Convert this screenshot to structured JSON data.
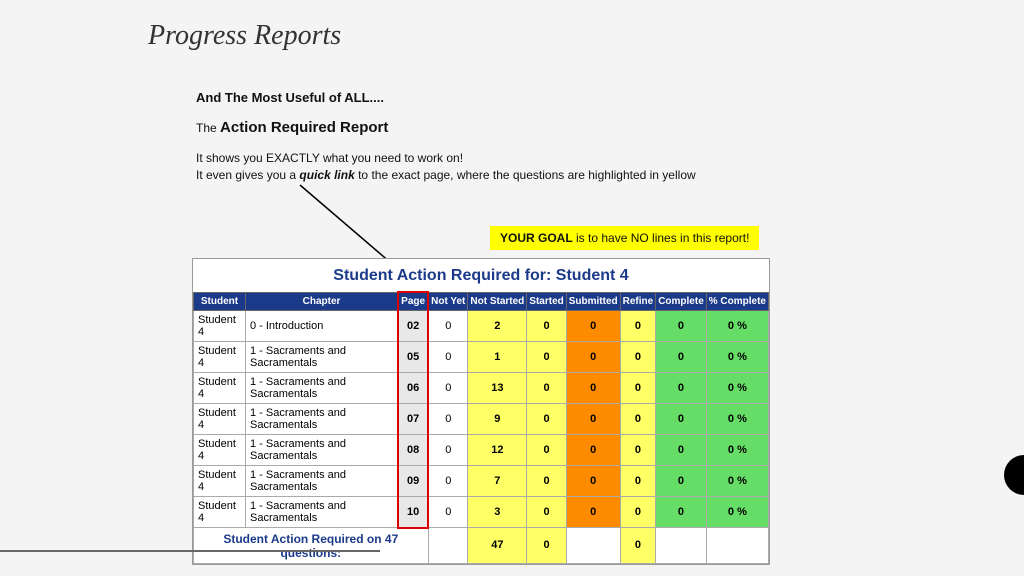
{
  "title": "Progress Reports",
  "heading1": "And The Most Useful of ALL....",
  "heading2_pre": "The ",
  "heading2_big": "Action Required Report",
  "desc1": "It shows you EXACTLY what you need to work on!",
  "desc2a": "It even gives you a ",
  "desc2b": "quick link",
  "desc2c": " to the exact page, where the questions are highlighted in yellow",
  "goal_bold": "YOUR GOAL",
  "goal_rest": " is to have NO lines in this report!",
  "report_title": "Student Action Required for: Student 4",
  "columns": [
    "Student",
    "Chapter",
    "Page",
    "Not Yet",
    "Not Started",
    "Started",
    "Submitted",
    "Refine",
    "Complete",
    "% Complete"
  ],
  "rows": [
    {
      "student": "Student 4",
      "chapter": "0 - Introduction",
      "page": "02",
      "notyet": "0",
      "notstarted": "2",
      "started": "0",
      "submitted": "0",
      "refine": "0",
      "complete": "0",
      "pct": "0 %"
    },
    {
      "student": "Student 4",
      "chapter": "1 - Sacraments and Sacramentals",
      "page": "05",
      "notyet": "0",
      "notstarted": "1",
      "started": "0",
      "submitted": "0",
      "refine": "0",
      "complete": "0",
      "pct": "0 %"
    },
    {
      "student": "Student 4",
      "chapter": "1 - Sacraments and Sacramentals",
      "page": "06",
      "notyet": "0",
      "notstarted": "13",
      "started": "0",
      "submitted": "0",
      "refine": "0",
      "complete": "0",
      "pct": "0 %"
    },
    {
      "student": "Student 4",
      "chapter": "1 - Sacraments and Sacramentals",
      "page": "07",
      "notyet": "0",
      "notstarted": "9",
      "started": "0",
      "submitted": "0",
      "refine": "0",
      "complete": "0",
      "pct": "0 %"
    },
    {
      "student": "Student 4",
      "chapter": "1 - Sacraments and Sacramentals",
      "page": "08",
      "notyet": "0",
      "notstarted": "12",
      "started": "0",
      "submitted": "0",
      "refine": "0",
      "complete": "0",
      "pct": "0 %"
    },
    {
      "student": "Student 4",
      "chapter": "1 - Sacraments and Sacramentals",
      "page": "09",
      "notyet": "0",
      "notstarted": "7",
      "started": "0",
      "submitted": "0",
      "refine": "0",
      "complete": "0",
      "pct": "0 %"
    },
    {
      "student": "Student 4",
      "chapter": "1 - Sacraments and Sacramentals",
      "page": "10",
      "notyet": "0",
      "notstarted": "3",
      "started": "0",
      "submitted": "0",
      "refine": "0",
      "complete": "0",
      "pct": "0 %"
    }
  ],
  "summary_label": "Student Action Required on 47 questions:",
  "summary": {
    "notstarted": "47",
    "started": "0",
    "refine": "0"
  },
  "colors": {
    "header_bg": "#1b3a8a",
    "yellow": "#ffff66",
    "orange": "#ff8c00",
    "green": "#66dd66",
    "red_border": "#d00"
  }
}
